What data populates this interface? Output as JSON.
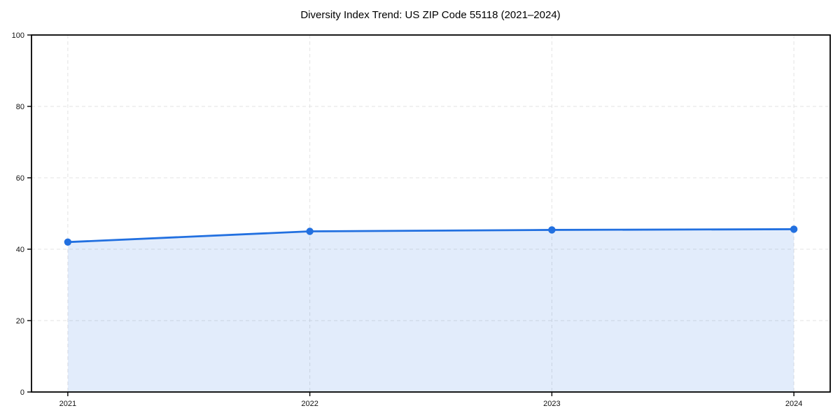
{
  "figure": {
    "background": "#ffffff"
  },
  "chart_data": {
    "type": "area",
    "title": "Diversity Index Trend: US ZIP Code 55118 (2021–2024)",
    "x": [
      2021,
      2022,
      2023,
      2024
    ],
    "x_tick_labels": [
      "2021",
      "2022",
      "2023",
      "2024"
    ],
    "series": [
      {
        "name": "Diversity Index",
        "values": [
          42,
          45,
          45.4,
          45.6
        ]
      }
    ],
    "xlabel": "",
    "ylabel": "",
    "ylim": [
      0,
      100
    ],
    "y_ticks": [
      0,
      20,
      40,
      60,
      80,
      100
    ],
    "y_tick_labels": [
      "0",
      "20",
      "40",
      "60",
      "80",
      "100"
    ],
    "x_margin_years": 0.15,
    "grid": {
      "show": true,
      "style": "dashed",
      "color": "#e3e3e3"
    },
    "legend_position": "none",
    "colors": {
      "line": "#2270e0",
      "marker": "#2270e0",
      "fill": "#2270e0",
      "fill_opacity": 0.13,
      "axis": "#000000",
      "tick_label": "#111111",
      "title": "#000000"
    }
  }
}
